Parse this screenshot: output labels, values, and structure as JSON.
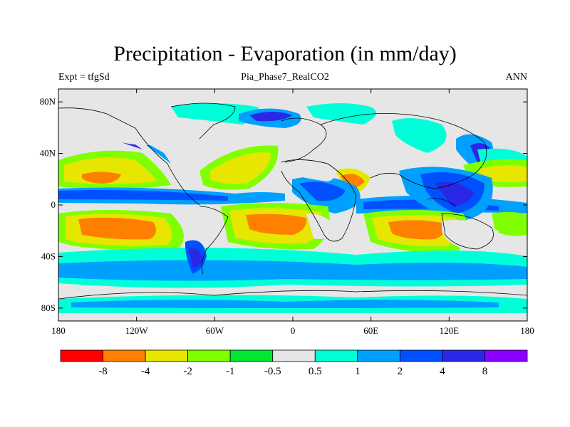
{
  "title": "Precipitation - Evaporation (in mm/day)",
  "subtitle": "Pia_Phase7_RealCO2",
  "left_label": "Expt = tfgSd",
  "right_label": "ANN",
  "lat_ticks": [
    {
      "value": 80,
      "label": "80N"
    },
    {
      "value": 40,
      "label": "40N"
    },
    {
      "value": 0,
      "label": "0"
    },
    {
      "value": -40,
      "label": "40S"
    },
    {
      "value": -80,
      "label": "80S"
    }
  ],
  "lon_ticks": [
    {
      "value": -180,
      "label": "180"
    },
    {
      "value": -120,
      "label": "120W"
    },
    {
      "value": -60,
      "label": "60W"
    },
    {
      "value": 0,
      "label": "0"
    },
    {
      "value": 60,
      "label": "60E"
    },
    {
      "value": 120,
      "label": "120E"
    },
    {
      "value": 180,
      "label": "180"
    }
  ],
  "colorbar": {
    "colors": [
      "#ff0000",
      "#ff8000",
      "#e6e600",
      "#80ff00",
      "#00e632",
      "#e6e6e6",
      "#00ffd9",
      "#00a0ff",
      "#0050ff",
      "#2828e6",
      "#8c00ff"
    ],
    "labels": [
      "-8",
      "-4",
      "-2",
      "-1",
      "-0.5",
      "0.5",
      "1",
      "2",
      "4",
      "8"
    ]
  },
  "colors": {
    "ocean_background": "#e6e6e6",
    "land_outline": "#000000"
  }
}
